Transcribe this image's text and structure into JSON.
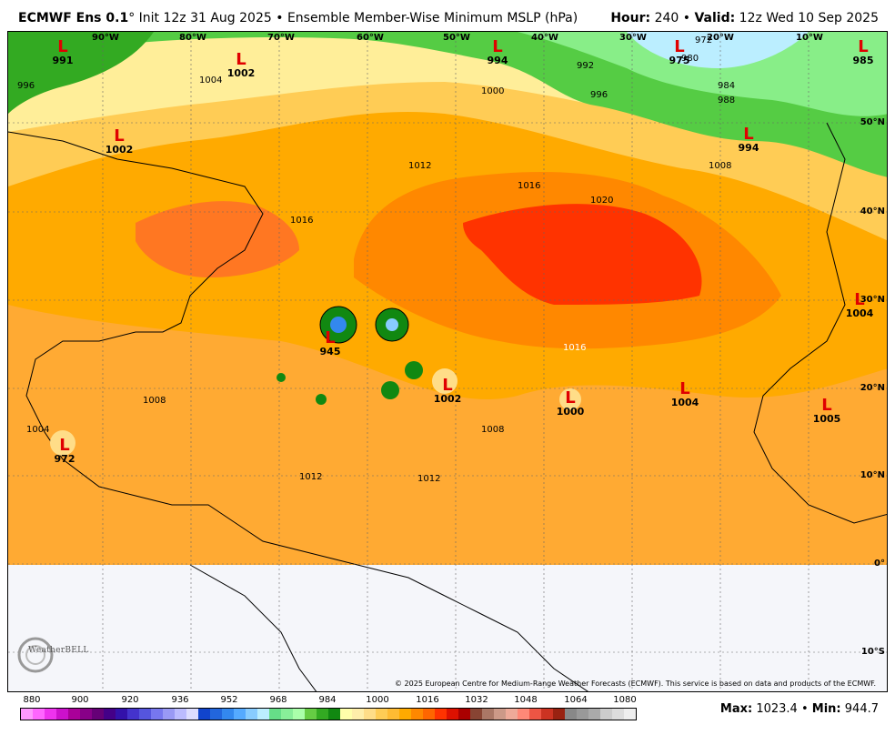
{
  "header": {
    "model": "ECMWF Ens 0.1",
    "degree": "°",
    "init": "Init 12z 31 Aug 2025",
    "bullet": "•",
    "product": "Ensemble Member-Wise Minimum MSLP (hPa)",
    "hour_label": "Hour:",
    "hour_value": "240",
    "valid_label": "Valid:",
    "valid_value": "12z Wed 10 Sep 2025"
  },
  "map": {
    "lat_labels": [
      "50°N",
      "40°N",
      "30°N",
      "20°N",
      "10°N",
      "0°",
      "10°S"
    ],
    "lon_labels": [
      "90°W",
      "80°W",
      "70°W",
      "60°W",
      "50°W",
      "40°W",
      "30°W",
      "20°W",
      "10°W"
    ],
    "lows": [
      {
        "letter": "L",
        "value": "991"
      },
      {
        "letter": "L",
        "value": "1002"
      },
      {
        "letter": "L",
        "value": "994"
      },
      {
        "letter": "L",
        "value": "975"
      },
      {
        "letter": "L",
        "value": "985"
      },
      {
        "letter": "L",
        "value": "1002"
      },
      {
        "letter": "L",
        "value": "994"
      },
      {
        "letter": "L",
        "value": "1004"
      },
      {
        "letter": "L",
        "value": "945"
      },
      {
        "letter": "L",
        "value": "1002"
      },
      {
        "letter": "L",
        "value": "1000"
      },
      {
        "letter": "L",
        "value": "1004"
      },
      {
        "letter": "L",
        "value": "1005"
      },
      {
        "letter": "L",
        "value": "972"
      }
    ],
    "contour_labels": [
      "996",
      "992",
      "996",
      "1000",
      "1004",
      "1008",
      "1012",
      "1016",
      "1020",
      "1016",
      "1012",
      "1008",
      "984",
      "988",
      "980",
      "972",
      "1004",
      "1008",
      "1012",
      "1016"
    ],
    "copyright": "© 2025 European Centre for Medium-Range Weather Forecasts (ECMWF). This service is based on data and products of the ECMWF.",
    "logo": "WeatherBELL"
  },
  "colorbar": {
    "labels": [
      "880",
      "900",
      "920",
      "936",
      "952",
      "968",
      "984",
      "1000",
      "1016",
      "1032",
      "1048",
      "1064",
      "1080"
    ],
    "colors": [
      "#ff99ff",
      "#ff66ff",
      "#ee33ee",
      "#cc11cc",
      "#aa0099",
      "#880088",
      "#660077",
      "#440088",
      "#3311aa",
      "#4433cc",
      "#5555dd",
      "#7777ee",
      "#9999f5",
      "#bbbbff",
      "#ddddff",
      "#1144cc",
      "#2266dd",
      "#3388ee",
      "#55aaff",
      "#88ccff",
      "#bbeeff",
      "#66dd88",
      "#88ee99",
      "#aaffaa",
      "#66cc44",
      "#33aa22",
      "#118811",
      "#ffffaa",
      "#ffeeaa",
      "#ffdd88",
      "#ffcc55",
      "#ffbb33",
      "#ffaa00",
      "#ff8800",
      "#ff6600",
      "#ff3300",
      "#dd1100",
      "#aa0000",
      "#884433",
      "#aa7766",
      "#cc9988",
      "#eeaa99",
      "#ff8877",
      "#ee5544",
      "#cc3322",
      "#992211",
      "#888888",
      "#999999",
      "#aaaaaa",
      "#cccccc",
      "#dddddd",
      "#eeeeee"
    ]
  },
  "stats": {
    "max_label": "Max:",
    "max_value": "1023.4",
    "separator": "•",
    "min_label": "Min:",
    "min_value": "944.7"
  }
}
